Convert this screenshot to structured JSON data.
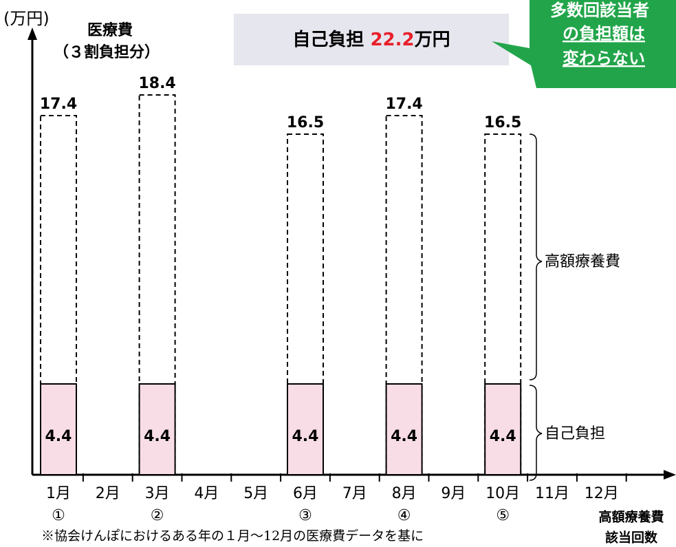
{
  "chart_data": {
    "type": "bar",
    "unit_label": "(万円)",
    "y_label": [
      "医療費",
      "（３割負担分）"
    ],
    "summary": {
      "label": "自己負担",
      "value": 22.2,
      "unit": "万円"
    },
    "callout": [
      "多数回該当者",
      "の負担額は",
      "変わらない"
    ],
    "categories": [
      "1月",
      "2月",
      "3月",
      "4月",
      "5月",
      "6月",
      "7月",
      "8月",
      "9月",
      "10月",
      "11月",
      "12月"
    ],
    "counts": [
      "①",
      null,
      "②",
      null,
      null,
      "③",
      null,
      "④",
      null,
      "⑤",
      null,
      null
    ],
    "count_label": [
      "高額療養費",
      "該当回数"
    ],
    "series": [
      {
        "color": "#ffffff",
        "values": [
          17.4,
          null,
          18.4,
          null,
          null,
          16.5,
          null,
          17.4,
          null,
          16.5,
          null,
          null
        ]
      },
      {
        "color": "#f8dde6",
        "values": [
          4.4,
          null,
          4.4,
          null,
          null,
          4.4,
          null,
          4.4,
          null,
          4.4,
          null,
          null
        ]
      }
    ],
    "brace_labels": [
      "高額療養費",
      "自己負担"
    ],
    "ylim": [
      0,
      21.5
    ],
    "note": "※協会けんぽにおけるある年の１月〜12月の医療費データを基に"
  }
}
